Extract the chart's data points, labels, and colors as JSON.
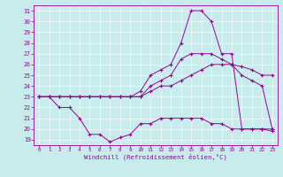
{
  "xlabel": "Windchill (Refroidissement éolien,°C)",
  "background_color": "#c8ecec",
  "grid_color": "#aed4d4",
  "line_color": "#990099",
  "xlim": [
    -0.5,
    23.5
  ],
  "ylim": [
    18.5,
    31.5
  ],
  "yticks": [
    19,
    20,
    21,
    22,
    23,
    24,
    25,
    26,
    27,
    28,
    29,
    30,
    31
  ],
  "xticks": [
    0,
    1,
    2,
    3,
    4,
    5,
    6,
    7,
    8,
    9,
    10,
    11,
    12,
    13,
    14,
    15,
    16,
    17,
    18,
    19,
    20,
    21,
    22,
    23
  ],
  "series": [
    {
      "x": [
        0,
        1,
        2,
        3,
        4,
        5,
        6,
        7,
        8,
        9,
        10,
        11,
        12,
        13,
        14,
        15,
        16,
        17,
        18,
        19,
        20,
        21,
        22,
        23
      ],
      "y": [
        23,
        23,
        22,
        22,
        21,
        19.5,
        19.5,
        18.8,
        19.2,
        19.5,
        20.5,
        20.5,
        21,
        21,
        21,
        21,
        21,
        20.5,
        20.5,
        20,
        20,
        20,
        20,
        20
      ]
    },
    {
      "x": [
        0,
        1,
        2,
        3,
        4,
        5,
        6,
        7,
        8,
        9,
        10,
        11,
        12,
        13,
        14,
        15,
        16,
        17,
        18,
        19,
        20,
        21,
        22,
        23
      ],
      "y": [
        23,
        23,
        23,
        23,
        23,
        23,
        23,
        23,
        23,
        23,
        23,
        23.5,
        24,
        24,
        24.5,
        25,
        25.5,
        26,
        26,
        26,
        25.8,
        25.5,
        25,
        25
      ]
    },
    {
      "x": [
        0,
        1,
        2,
        3,
        4,
        5,
        6,
        7,
        8,
        9,
        10,
        11,
        12,
        13,
        14,
        15,
        16,
        17,
        18,
        19,
        20,
        21,
        22,
        23
      ],
      "y": [
        23,
        23,
        23,
        23,
        23,
        23,
        23,
        23,
        23,
        23,
        23.5,
        25,
        25.5,
        26,
        28,
        31,
        31,
        30,
        27,
        27,
        20,
        20,
        20,
        19.8
      ]
    },
    {
      "x": [
        0,
        1,
        2,
        3,
        4,
        5,
        6,
        7,
        8,
        9,
        10,
        11,
        12,
        13,
        14,
        15,
        16,
        17,
        18,
        19,
        20,
        21,
        22,
        23
      ],
      "y": [
        23,
        23,
        23,
        23,
        23,
        23,
        23,
        23,
        23,
        23,
        23,
        24,
        24.5,
        25,
        26.5,
        27,
        27,
        27,
        26.5,
        26,
        25,
        24.5,
        24,
        20
      ]
    }
  ]
}
